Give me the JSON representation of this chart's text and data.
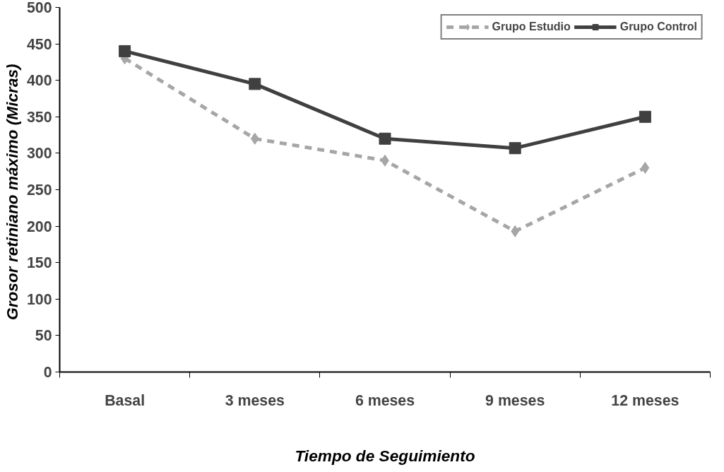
{
  "chart_data": {
    "type": "line",
    "xlabel": "Tiempo de Seguimiento",
    "ylabel": "Grosor retiniano máximo  (Micras)",
    "categories": [
      "Basal",
      "3 meses",
      "6 meses",
      "9 meses",
      "12 meses"
    ],
    "series": [
      {
        "name": "Grupo Estudio",
        "color": "#a6a6a6",
        "marker": "diamond",
        "line_style": "dashed",
        "values": [
          430,
          320,
          290,
          193,
          280
        ]
      },
      {
        "name": "Grupo Control",
        "color": "#404040",
        "marker": "square",
        "line_style": "solid",
        "values": [
          440,
          395,
          320,
          307,
          350
        ]
      }
    ],
    "ylim": [
      0,
      500
    ],
    "yticks": [
      0,
      50,
      100,
      150,
      200,
      250,
      300,
      350,
      400,
      450,
      500
    ],
    "grid": false,
    "legend": "top right"
  }
}
